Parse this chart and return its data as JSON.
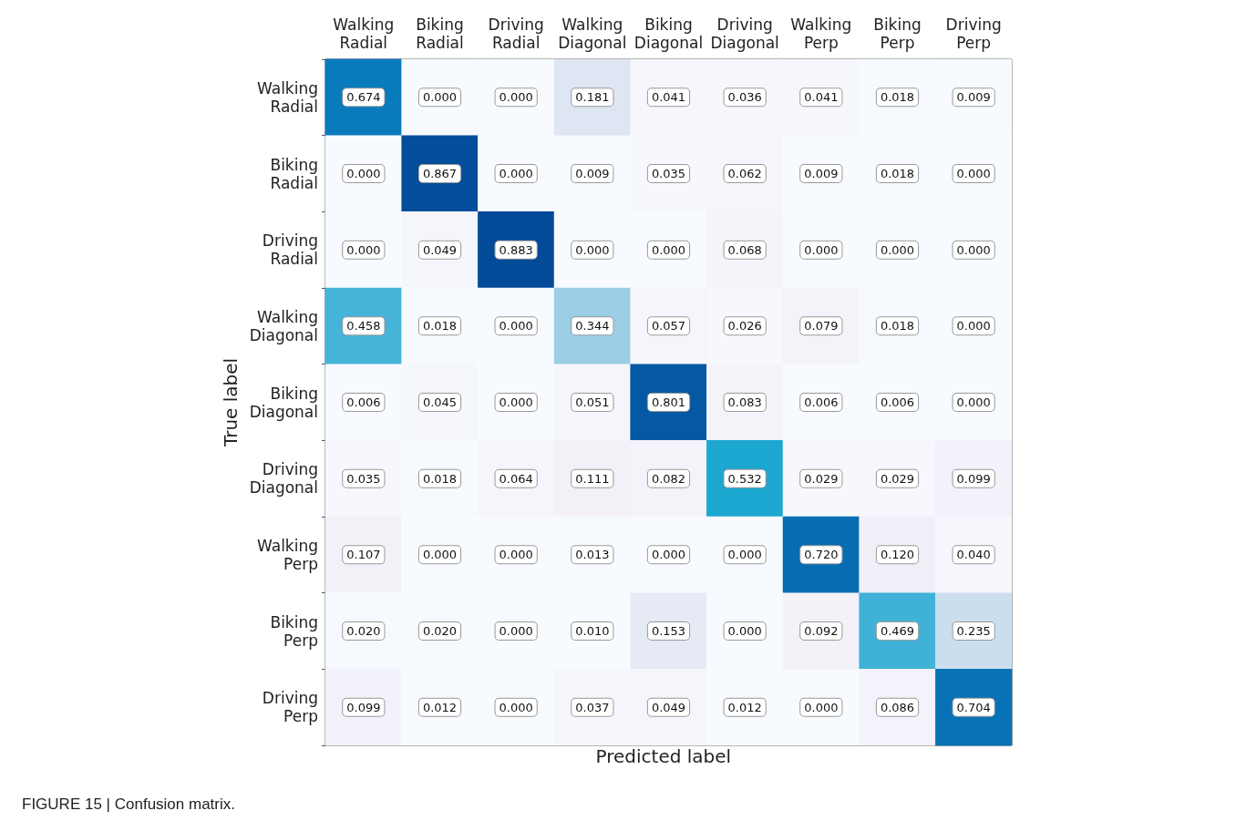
{
  "chart_data": {
    "type": "heatmap",
    "xlabel": "Predicted label",
    "ylabel": "True label",
    "annotations": [
      "FIGURE 15 | Confusion matrix."
    ],
    "categories": [
      "Walking Radial",
      "Biking Radial",
      "Driving Radial",
      "Walking Diagonal",
      "Biking Diagonal",
      "Driving Diagonal",
      "Walking Perp",
      "Biking Perp",
      "Driving Perp"
    ],
    "y_categories": [
      "Walking Radial",
      "Biking Radial",
      "Driving Radial",
      "Walking Diagonal",
      "Biking Diagonal",
      "Driving Diagonal",
      "Walking Perp",
      "Biking Perp",
      "Driving Perp"
    ],
    "cells": [
      [
        0.674,
        0.0,
        0.0,
        0.181,
        0.041,
        0.036,
        0.041,
        0.018,
        0.009
      ],
      [
        0.0,
        0.867,
        0.0,
        0.009,
        0.035,
        0.062,
        0.009,
        0.018,
        0.0
      ],
      [
        0.0,
        0.049,
        0.883,
        0.0,
        0.0,
        0.068,
        0.0,
        0.0,
        0.0
      ],
      [
        0.458,
        0.018,
        0.0,
        0.344,
        0.057,
        0.026,
        0.079,
        0.018,
        0.0
      ],
      [
        0.006,
        0.045,
        0.0,
        0.051,
        0.801,
        0.083,
        0.006,
        0.006,
        0.0
      ],
      [
        0.035,
        0.018,
        0.064,
        0.111,
        0.082,
        0.532,
        0.029,
        0.029,
        0.099
      ],
      [
        0.107,
        0.0,
        0.0,
        0.013,
        0.0,
        0.0,
        0.72,
        0.12,
        0.04
      ],
      [
        0.02,
        0.02,
        0.0,
        0.01,
        0.153,
        0.0,
        0.092,
        0.469,
        0.235
      ],
      [
        0.099,
        0.012,
        0.0,
        0.037,
        0.049,
        0.012,
        0.0,
        0.086,
        0.704
      ]
    ],
    "cell_labels": [
      [
        "0.674",
        "0.000",
        "0.000",
        "0.181",
        "0.041",
        "0.036",
        "0.041",
        "0.018",
        "0.009"
      ],
      [
        "0.000",
        "0.867",
        "0.000",
        "0.009",
        "0.035",
        "0.062",
        "0.009",
        "0.018",
        "0.000"
      ],
      [
        "0.000",
        "0.049",
        "0.883",
        "0.000",
        "0.000",
        "0.068",
        "0.000",
        "0.000",
        "0.000"
      ],
      [
        "0.458",
        "0.018",
        "0.000",
        "0.344",
        "0.057",
        "0.026",
        "0.079",
        "0.018",
        "0.000"
      ],
      [
        "0.006",
        "0.045",
        "0.000",
        "0.051",
        "0.801",
        "0.083",
        "0.006",
        "0.006",
        "0.000"
      ],
      [
        "0.035",
        "0.018",
        "0.064",
        "0.111",
        "0.082",
        "0.532",
        "0.029",
        "0.029",
        "0.099"
      ],
      [
        "0.107",
        "0.000",
        "0.000",
        "0.013",
        "0.000",
        "0.000",
        "0.720",
        "0.120",
        "0.040"
      ],
      [
        "0.020",
        "0.020",
        "0.000",
        "0.010",
        "0.153",
        "0.000",
        "0.092",
        "0.469",
        "0.235"
      ],
      [
        "0.099",
        "0.012",
        "0.000",
        "0.037",
        "0.049",
        "0.012",
        "0.000",
        "0.086",
        "0.704"
      ]
    ],
    "data_labels": true
  }
}
